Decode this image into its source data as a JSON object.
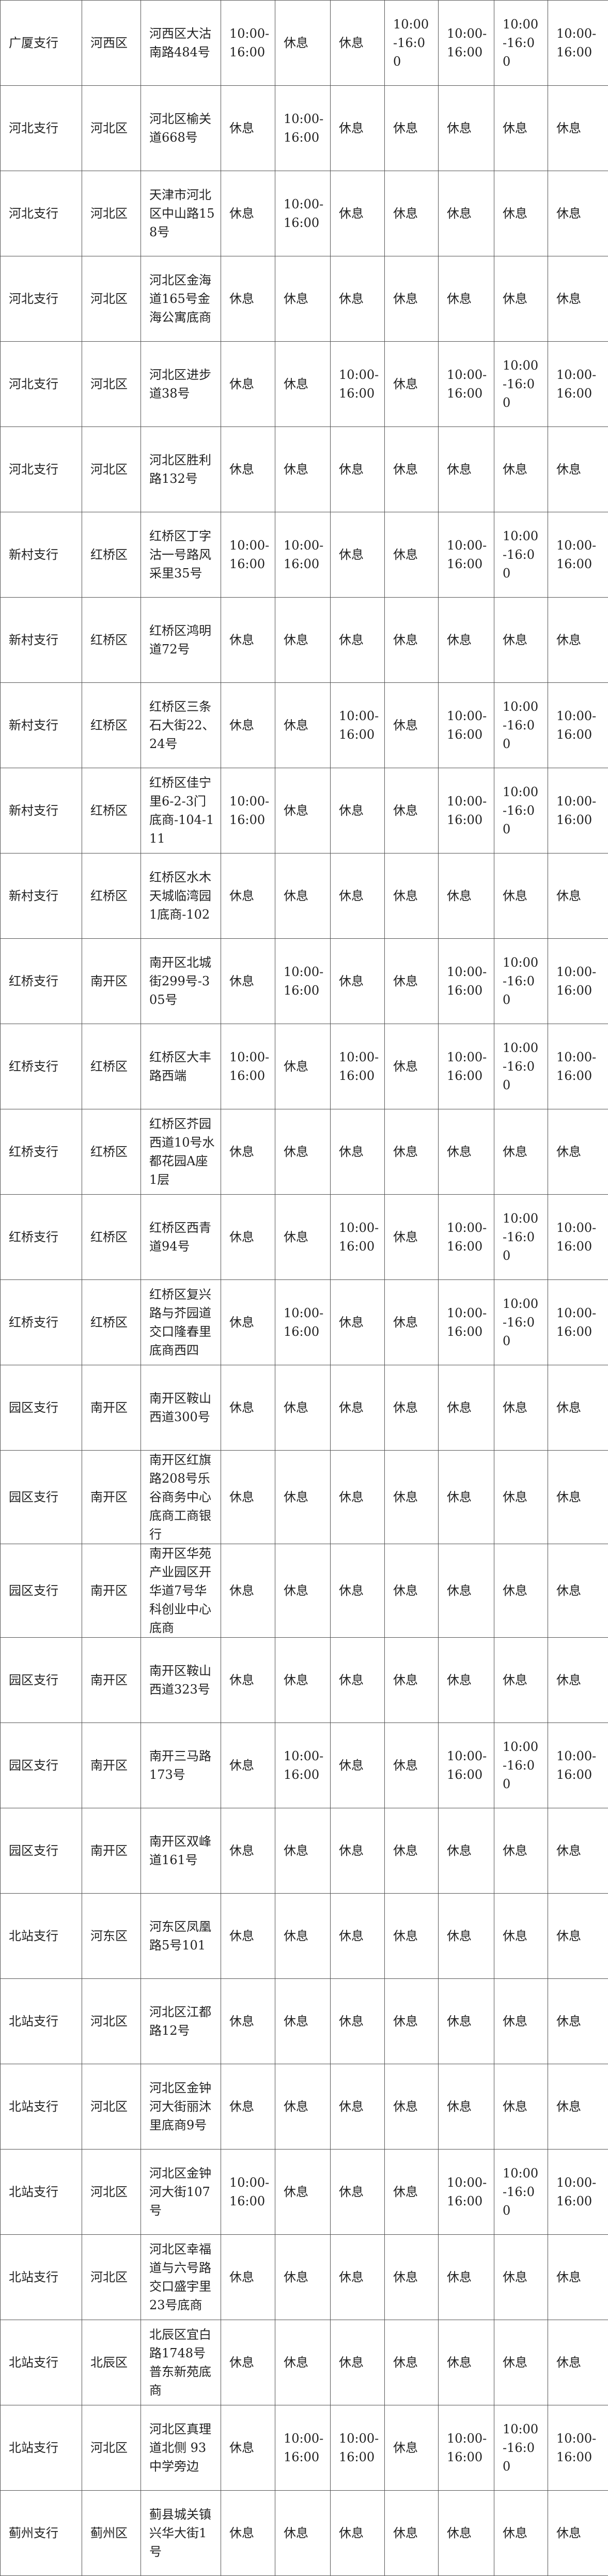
{
  "table": {
    "rows": [
      [
        "广厦支行",
        "河西区",
        "河西区大沽南路484号",
        "10:00-16:00",
        "休息",
        "休息",
        "10:00-16:00",
        "10:00-16:00",
        "10:00-16:00",
        "10:00-16:00"
      ],
      [
        "河北支行",
        "河北区",
        "河北区榆关道668号",
        "休息",
        "10:00-16:00",
        "休息",
        "休息",
        "休息",
        "休息",
        "休息"
      ],
      [
        "河北支行",
        "河北区",
        "天津市河北区中山路158号",
        "休息",
        "10:00-16:00",
        "休息",
        "休息",
        "休息",
        "休息",
        "休息"
      ],
      [
        "河北支行",
        "河北区",
        "河北区金海道165号金海公寓底商",
        "休息",
        "休息",
        "休息",
        "休息",
        "休息",
        "休息",
        "休息"
      ],
      [
        "河北支行",
        "河北区",
        "河北区进步道38号",
        "休息",
        "休息",
        "10:00-16:00",
        "休息",
        "10:00-16:00",
        "10:00-16:00",
        "10:00-16:00"
      ],
      [
        "河北支行",
        "河北区",
        "河北区胜利路132号",
        "休息",
        "休息",
        "休息",
        "休息",
        "休息",
        "休息",
        "休息"
      ],
      [
        "新村支行",
        "红桥区",
        "红桥区丁字沽一号路风采里35号",
        "10:00-16:00",
        "10:00-16:00",
        "休息",
        "休息",
        "10:00-16:00",
        "10:00-16:00",
        "10:00-16:00"
      ],
      [
        "新村支行",
        "红桥区",
        "红桥区鸿明道72号",
        "休息",
        "休息",
        "休息",
        "休息",
        "休息",
        "休息",
        "休息"
      ],
      [
        "新村支行",
        "红桥区",
        "红桥区三条石大街22、24号",
        "休息",
        "休息",
        "10:00-16:00",
        "休息",
        "10:00-16:00",
        "10:00-16:00",
        "10:00-16:00"
      ],
      [
        "新村支行",
        "红桥区",
        "红桥区佳宁里6-2-3门底商-104-111",
        "10:00-16:00",
        "休息",
        "休息",
        "休息",
        "10:00-16:00",
        "10:00-16:00",
        "10:00-16:00"
      ],
      [
        "新村支行",
        "红桥区",
        "红桥区水木天城临湾园1底商-102",
        "休息",
        "休息",
        "休息",
        "休息",
        "休息",
        "休息",
        "休息"
      ],
      [
        "红桥支行",
        "南开区",
        "南开区北城街299号-305号",
        "休息",
        "10:00-16:00",
        "休息",
        "休息",
        "10:00-16:00",
        "10:00-16:00",
        "10:00-16:00"
      ],
      [
        "红桥支行",
        "红桥区",
        "红桥区大丰路西端",
        "10:00-16:00",
        "休息",
        "10:00-16:00",
        "休息",
        "10:00-16:00",
        "10:00-16:00",
        "10:00-16:00"
      ],
      [
        "红桥支行",
        "红桥区",
        "红桥区芥园西道10号水都花园A座1层",
        "休息",
        "休息",
        "休息",
        "休息",
        "休息",
        "休息",
        "休息"
      ],
      [
        "红桥支行",
        "红桥区",
        "红桥区西青道94号",
        "休息",
        "休息",
        "10:00-16:00",
        "休息",
        "10:00-16:00",
        "10:00-16:00",
        "10:00-16:00"
      ],
      [
        "红桥支行",
        "红桥区",
        "红桥区复兴路与芥园道交口隆春里底商西四",
        "休息",
        "10:00-16:00",
        "休息",
        "休息",
        "10:00-16:00",
        "10:00-16:00",
        "10:00-16:00"
      ],
      [
        "园区支行",
        "南开区",
        "南开区鞍山西道300号",
        "休息",
        "休息",
        "休息",
        "休息",
        "休息",
        "休息",
        "休息"
      ],
      [
        "园区支行",
        "南开区",
        "南开区红旗路208号乐谷商务中心底商工商银行",
        "休息",
        "休息",
        "休息",
        "休息",
        "休息",
        "休息",
        "休息"
      ],
      [
        "园区支行",
        "南开区",
        "南开区华苑产业园区开华道7号华科创业中心底商",
        "休息",
        "休息",
        "休息",
        "休息",
        "休息",
        "休息",
        "休息"
      ],
      [
        "园区支行",
        "南开区",
        "南开区鞍山西道323号",
        "休息",
        "休息",
        "休息",
        "休息",
        "休息",
        "休息",
        "休息"
      ],
      [
        "园区支行",
        "南开区",
        "南开三马路173号",
        "休息",
        "10:00-16:00",
        "休息",
        "休息",
        "10:00-16:00",
        "10:00-16:00",
        "10:00-16:00"
      ],
      [
        "园区支行",
        "南开区",
        "南开区双峰道161号",
        "休息",
        "休息",
        "休息",
        "休息",
        "休息",
        "休息",
        "休息"
      ],
      [
        "北站支行",
        "河东区",
        "河东区凤凰路5号101",
        "休息",
        "休息",
        "休息",
        "休息",
        "休息",
        "休息",
        "休息"
      ],
      [
        "北站支行",
        "河北区",
        "河北区江都路12号",
        "休息",
        "休息",
        "休息",
        "休息",
        "休息",
        "休息",
        "休息"
      ],
      [
        "北站支行",
        "河北区",
        "河北区金钟河大街丽沐里底商9号",
        "休息",
        "休息",
        "休息",
        "休息",
        "休息",
        "休息",
        "休息"
      ],
      [
        "北站支行",
        "河北区",
        "河北区金钟河大街107号",
        "10:00-16:00",
        "休息",
        "休息",
        "休息",
        "10:00-16:00",
        "10:00-16:00",
        "10:00-16:00"
      ],
      [
        "北站支行",
        "河北区",
        "河北区幸福道与六号路交口盛宇里23号底商",
        "休息",
        "休息",
        "休息",
        "休息",
        "休息",
        "休息",
        "休息"
      ],
      [
        "北站支行",
        "北辰区",
        "北辰区宜白路1748号普东新苑底商",
        "休息",
        "休息",
        "休息",
        "休息",
        "休息",
        "休息",
        "休息"
      ],
      [
        "北站支行",
        "河北区",
        "河北区真理道北侧 93中学旁边",
        "休息",
        "10:00-16:00",
        "10:00-16:00",
        "休息",
        "10:00-16:00",
        "10:00-16:00",
        "10:00-16:00"
      ],
      [
        "蓟州支行",
        "蓟州区",
        "蓟县城关镇兴华大街1号",
        "休息",
        "休息",
        "休息",
        "休息",
        "休息",
        "休息",
        "休息"
      ]
    ]
  }
}
